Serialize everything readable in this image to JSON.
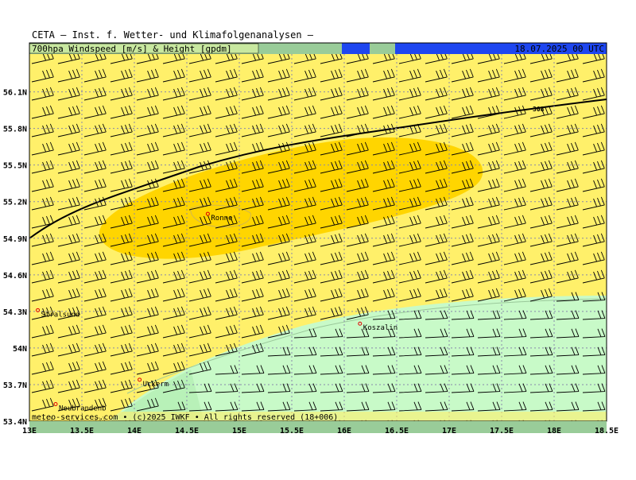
{
  "header": {
    "title": "CETA – Inst. f. Wetter- und Klimafolgenanalysen –",
    "product": "700hpa Windspeed [m/s] & Height [gpdm]",
    "valid": "18.07.2025 00 UTC"
  },
  "map": {
    "xlim": [
      13,
      18.5
    ],
    "ylim": [
      53.4,
      56.41
    ],
    "xticks": [
      {
        "value": 13,
        "label": "13E"
      },
      {
        "value": 13.5,
        "label": "13.5E"
      },
      {
        "value": 14,
        "label": "14E"
      },
      {
        "value": 14.5,
        "label": "14.5E"
      },
      {
        "value": 15,
        "label": "15E"
      },
      {
        "value": 15.5,
        "label": "15.5E"
      },
      {
        "value": 16,
        "label": "16E"
      },
      {
        "value": 16.5,
        "label": "16.5E"
      },
      {
        "value": 17,
        "label": "17E"
      },
      {
        "value": 17.5,
        "label": "17.5E"
      },
      {
        "value": 18,
        "label": "18E"
      },
      {
        "value": 18.5,
        "label": "18.5E"
      }
    ],
    "yticks": [
      {
        "value": 53.4,
        "label": "53.4N"
      },
      {
        "value": 53.7,
        "label": "53.7N"
      },
      {
        "value": 54,
        "label": "54N"
      },
      {
        "value": 54.3,
        "label": "54.3N"
      },
      {
        "value": 54.6,
        "label": "54.6N"
      },
      {
        "value": 54.9,
        "label": "54.9N"
      },
      {
        "value": 55.2,
        "label": "55.2N"
      },
      {
        "value": 55.5,
        "label": "55.5N"
      },
      {
        "value": 55.8,
        "label": "55.8N"
      },
      {
        "value": 56.1,
        "label": "56.1N"
      }
    ],
    "cities": [
      {
        "name": "Ronne",
        "lon": 14.7,
        "lat": 55.1
      },
      {
        "name": "Stralsund",
        "lon": 13.08,
        "lat": 54.31
      },
      {
        "name": "Koszalin",
        "lon": 16.15,
        "lat": 54.2
      },
      {
        "name": "Uckerm",
        "lon": 14.05,
        "lat": 53.74
      },
      {
        "name": "Neubrandenb",
        "lon": 13.25,
        "lat": 53.54
      }
    ],
    "contour_label": "308",
    "footer": "meteo-services.com • (c)2025 IWKF • All rights reserved (18+006)"
  }
}
